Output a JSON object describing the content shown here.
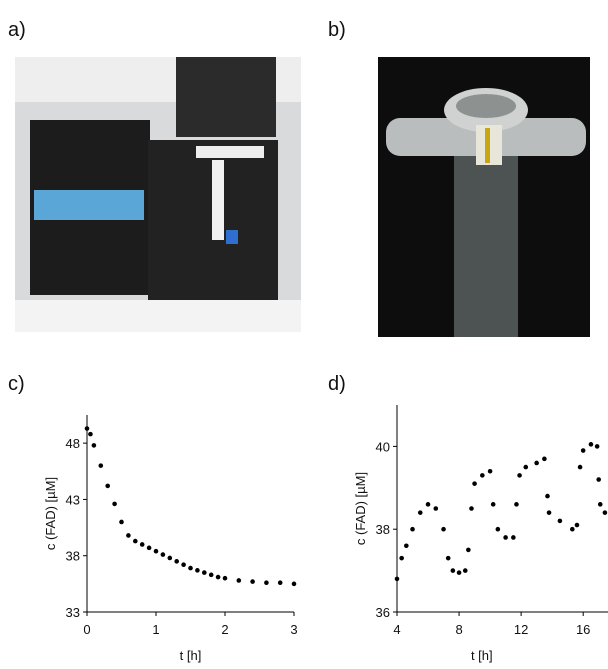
{
  "panel_labels": [
    "a)",
    "b)",
    "c)",
    "d)"
  ],
  "chart_data": [
    {
      "type": "scatter",
      "xlabel": "t [h]",
      "ylabel": "c (FAD) [µM]",
      "color": "#000000",
      "x": [
        0,
        0.05,
        0.1,
        0.2,
        0.3,
        0.4,
        0.5,
        0.6,
        0.7,
        0.8,
        0.9,
        1.0,
        1.1,
        1.2,
        1.3,
        1.4,
        1.5,
        1.6,
        1.7,
        1.8,
        1.9,
        2.0,
        2.2,
        2.4,
        2.6,
        2.8,
        3.0
      ],
      "values": [
        49.3,
        48.8,
        47.8,
        46.0,
        44.2,
        42.6,
        41.0,
        39.8,
        39.3,
        39.0,
        38.7,
        38.4,
        38.1,
        37.8,
        37.5,
        37.2,
        36.9,
        36.7,
        36.5,
        36.3,
        36.1,
        36.0,
        35.8,
        35.7,
        35.6,
        35.6,
        35.5
      ],
      "xlim": [
        0,
        3
      ],
      "xticks": [
        0,
        1,
        2,
        3
      ],
      "ylim": [
        33,
        50.5
      ],
      "yticks": [
        33,
        38,
        43,
        48
      ]
    },
    {
      "type": "scatter",
      "xlabel": "t  [h]",
      "ylabel": "c (FAD) [µM]",
      "color": "#000000",
      "x": [
        4,
        4.3,
        4.6,
        5,
        5.5,
        6,
        6.5,
        7,
        7.3,
        7.6,
        8,
        8.4,
        8.6,
        8.8,
        9,
        9.5,
        10,
        10.2,
        10.5,
        11,
        11.5,
        11.7,
        11.9,
        12.3,
        13,
        13.5,
        13.7,
        13.8,
        14.5,
        15.3,
        15.6,
        15.8,
        16,
        16.5,
        16.9,
        17.0,
        17.1,
        17.4
      ],
      "values": [
        36.8,
        37.3,
        37.6,
        38.0,
        38.4,
        38.6,
        38.5,
        38.0,
        37.3,
        37.0,
        36.95,
        37.0,
        37.5,
        38.5,
        39.1,
        39.3,
        39.4,
        38.6,
        38.0,
        37.8,
        37.8,
        38.6,
        39.3,
        39.5,
        39.6,
        39.7,
        38.8,
        38.4,
        38.2,
        38.0,
        38.1,
        39.5,
        39.9,
        40.05,
        40.0,
        39.2,
        38.6,
        38.4
      ],
      "xlim": [
        4,
        17.6
      ],
      "xticks": [
        4,
        8,
        12,
        16
      ],
      "ylim": [
        36,
        41
      ],
      "yticks": [
        36,
        38,
        40
      ]
    }
  ]
}
